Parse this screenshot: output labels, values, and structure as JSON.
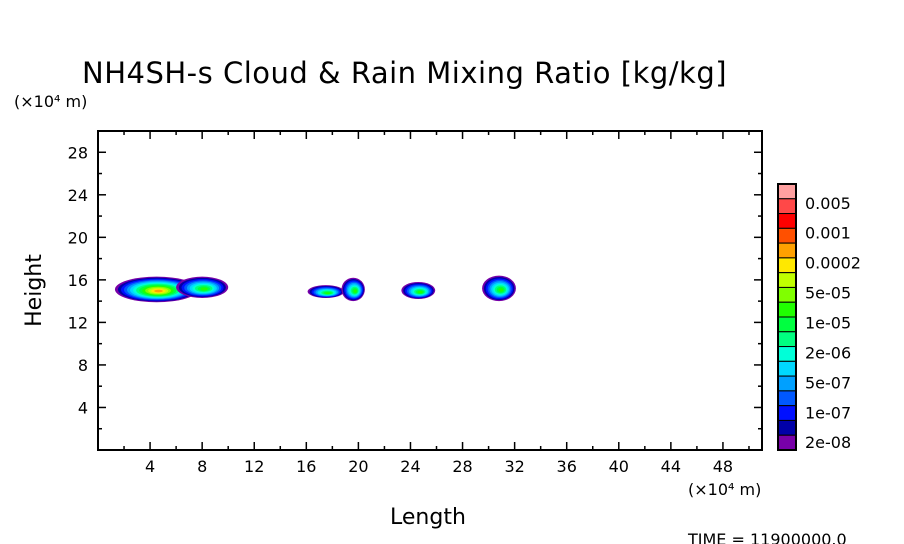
{
  "chart_data": {
    "type": "heatmap",
    "title": "NH4SH-s Cloud & Rain Mixing Ratio [kg/kg]",
    "xlabel": "Length",
    "ylabel": "Height",
    "x_unit": "(×10⁴ m)",
    "y_unit": "(×10⁴ m)",
    "xlim": [
      0,
      51
    ],
    "ylim": [
      0,
      30
    ],
    "x_ticks": [
      4,
      8,
      12,
      16,
      20,
      24,
      28,
      32,
      36,
      40,
      44,
      48
    ],
    "y_ticks": [
      4,
      8,
      12,
      16,
      20,
      24,
      28
    ],
    "colorbar": {
      "labels": [
        "0.005",
        "0.001",
        "0.0002",
        "5e-05",
        "1e-05",
        "2e-06",
        "5e-07",
        "1e-07",
        "2e-08"
      ],
      "colors_top_to_bottom": [
        "#ffa0a0",
        "#ff4848",
        "#ff0000",
        "#ff5000",
        "#ffa000",
        "#ffe800",
        "#c0ff00",
        "#80ff00",
        "#20ff00",
        "#00ff40",
        "#00ff80",
        "#00ffd8",
        "#00d8ff",
        "#00a0ff",
        "#0058ff",
        "#0010ff",
        "#0000a8",
        "#7800a8"
      ]
    },
    "cloud_features": [
      {
        "x": 4.5,
        "y": 15.1,
        "rx": 3.2,
        "ry": 1.2,
        "peak_level": 13
      },
      {
        "x": 8.0,
        "y": 15.3,
        "rx": 2.0,
        "ry": 1.0,
        "peak_level": 9
      },
      {
        "x": 17.5,
        "y": 14.9,
        "rx": 1.4,
        "ry": 0.6,
        "peak_level": 9
      },
      {
        "x": 19.6,
        "y": 15.1,
        "rx": 0.9,
        "ry": 1.1,
        "peak_level": 9
      },
      {
        "x": 24.6,
        "y": 15.0,
        "rx": 1.3,
        "ry": 0.8,
        "peak_level": 9
      },
      {
        "x": 30.8,
        "y": 15.2,
        "rx": 1.3,
        "ry": 1.2,
        "peak_level": 9
      }
    ]
  },
  "footer": {
    "time": "TIME = 11900000.0"
  }
}
